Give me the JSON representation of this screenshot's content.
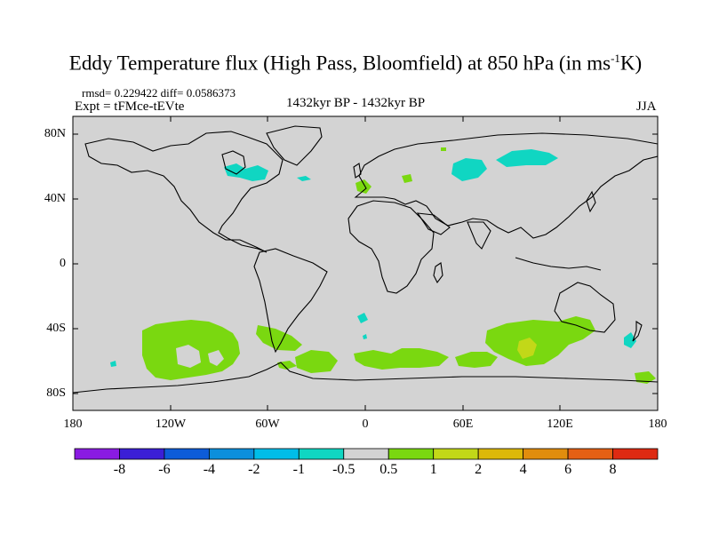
{
  "header": {
    "title": "Eddy Temperature flux (High Pass, Bloomfield) at 850 hPa (in ms",
    "title_sup": "-1",
    "title_end": "K)",
    "stats": "rmsd= 0.229422  diff= 0.0586373",
    "experiment": "Expt = tFMce-tEVte",
    "period": "1432kyr BP - 1432kyr BP",
    "season": "JJA"
  },
  "map": {
    "lat_labels": [
      "80N",
      "40N",
      "0",
      "40S",
      "80S"
    ],
    "lon_labels": [
      "180",
      "120W",
      "60W",
      "0",
      "60E",
      "120E",
      "180"
    ],
    "background_color": "#d3d3d3"
  },
  "colorbar": {
    "colors": [
      "#8a1be2",
      "#3b1fd6",
      "#0d5cd9",
      "#0c8fdc",
      "#00bde8",
      "#10d6c2",
      "#d3d3d3",
      "#7ad810",
      "#c2d818",
      "#dcb80a",
      "#e18d0d",
      "#e46014",
      "#de2a12"
    ],
    "labels": [
      "-8",
      "-6",
      "-4",
      "-2",
      "-1",
      "-0.5",
      "0.5",
      "1",
      "2",
      "4",
      "6",
      "8"
    ]
  }
}
